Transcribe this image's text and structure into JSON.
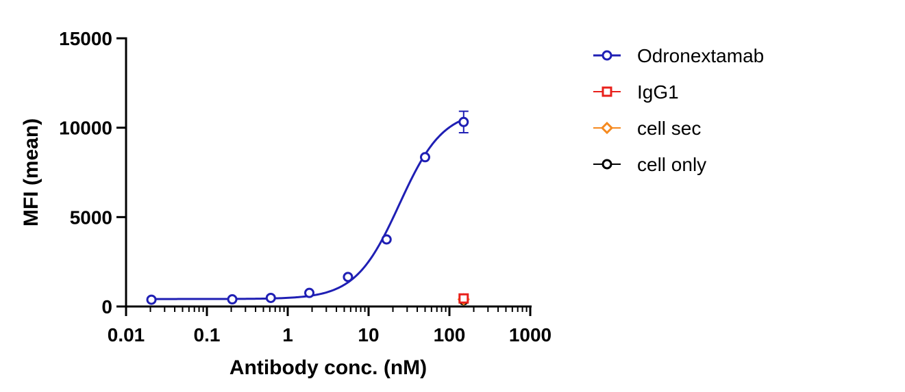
{
  "chart_data": {
    "type": "scatter",
    "xlabel": "Antibody conc. (nM)",
    "ylabel": "MFI (mean)",
    "xscale": "log",
    "xlim": [
      0.01,
      1000
    ],
    "ylim": [
      0,
      15000
    ],
    "x_ticks": [
      0.01,
      0.1,
      1,
      10,
      100,
      1000
    ],
    "x_tick_labels": [
      "0.01",
      "0.1",
      "1",
      "10",
      "100",
      "1000"
    ],
    "y_ticks": [
      0,
      5000,
      10000,
      15000
    ],
    "y_tick_labels": [
      "0",
      "5000",
      "10000",
      "15000"
    ],
    "grid": false,
    "legend_position": "right",
    "series": [
      {
        "name": "Odronextamab",
        "color": "#1f1fb4",
        "marker": "circle",
        "fit": "sigmoidal",
        "x": [
          0.0206,
          0.206,
          0.617,
          1.85,
          5.56,
          16.7,
          50,
          150
        ],
        "y": [
          380,
          400,
          480,
          760,
          1650,
          3750,
          8350,
          10320
        ],
        "error": [
          0,
          0,
          0,
          0,
          0,
          0,
          0,
          600
        ]
      },
      {
        "name": "IgG1",
        "color": "#e8201b",
        "marker": "square",
        "x": [
          150
        ],
        "y": [
          450
        ]
      },
      {
        "name": "cell sec",
        "color": "#f5891e",
        "marker": "diamond",
        "x": [
          150
        ],
        "y": [
          400
        ]
      },
      {
        "name": "cell only",
        "color": "#000000",
        "marker": "circle",
        "x": [
          150
        ],
        "y": [
          350
        ]
      }
    ]
  }
}
